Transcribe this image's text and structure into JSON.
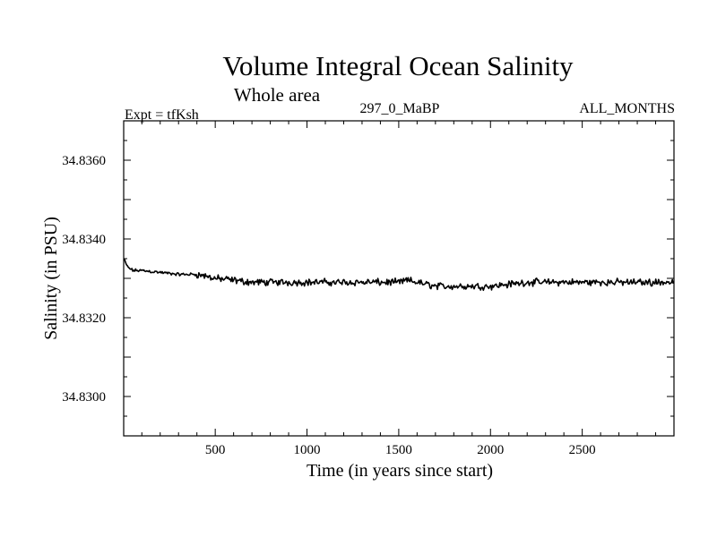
{
  "chart_data": {
    "type": "line",
    "title": "Volume Integral Ocean Salinity",
    "subtitle": "Whole area",
    "experiment_label": "Expt = tfKsh",
    "period_label": "297_0_MaBP",
    "months_label": "ALL_MONTHS",
    "xlabel": "Time (in years since start)",
    "ylabel": "Salinity (in PSU)",
    "xlim": [
      1,
      3000
    ],
    "ylim": [
      34.829,
      34.837
    ],
    "x_ticks": [
      500,
      1000,
      1500,
      2000,
      2500
    ],
    "x_tick_labels": [
      "500",
      "1000",
      "1500",
      "2000",
      "2500"
    ],
    "y_ticks": [
      34.83,
      34.832,
      34.834,
      34.836
    ],
    "y_tick_labels": [
      "34.8300",
      "34.8320",
      "34.8340",
      "34.8360"
    ],
    "series": [
      {
        "name": "Salinity",
        "color": "#000000",
        "x": [
          1,
          20,
          50,
          100,
          200,
          300,
          400,
          500,
          600,
          700,
          800,
          900,
          1000,
          1100,
          1200,
          1300,
          1400,
          1500,
          1550,
          1600,
          1700,
          1800,
          1900,
          2000,
          2100,
          2200,
          2300,
          2400,
          2500,
          2600,
          2700,
          2800,
          2900,
          3000
        ],
        "y": [
          34.8335,
          34.8333,
          34.8332,
          34.8332,
          34.83315,
          34.8331,
          34.8331,
          34.833,
          34.83295,
          34.8329,
          34.8329,
          34.8329,
          34.8329,
          34.8329,
          34.8329,
          34.8329,
          34.8329,
          34.8329,
          34.83295,
          34.8329,
          34.8328,
          34.8328,
          34.8328,
          34.8328,
          34.83285,
          34.8329,
          34.8329,
          34.8329,
          34.8329,
          34.8329,
          34.8329,
          34.8329,
          34.8329,
          34.8329
        ]
      }
    ]
  }
}
